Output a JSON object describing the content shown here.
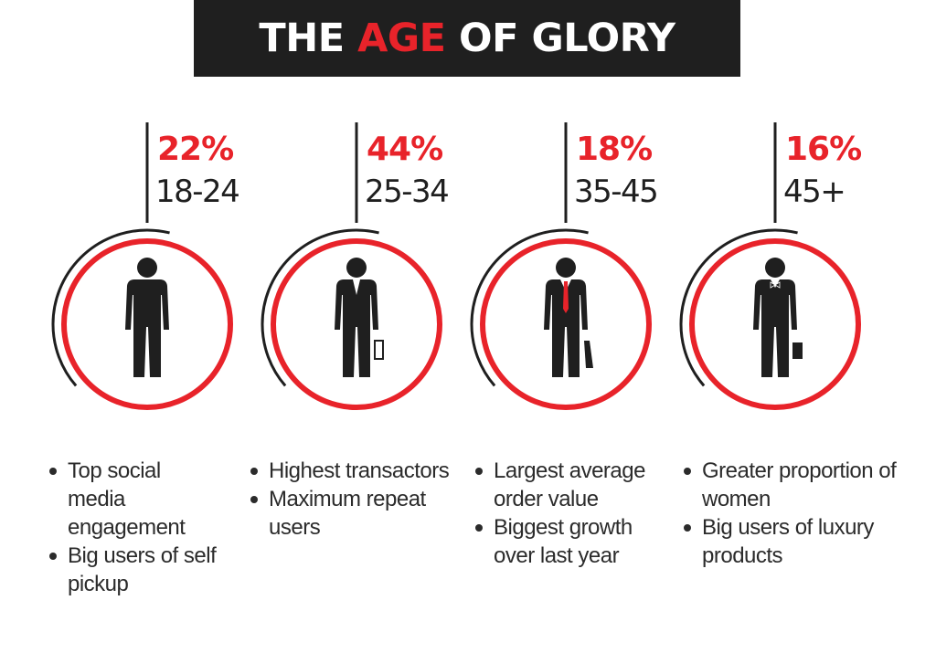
{
  "title": {
    "part1": "THE",
    "part2": "AGE",
    "part3": "OF GLORY"
  },
  "colors": {
    "accent": "#e8232a",
    "dark": "#1f1f1f",
    "text": "#2b2b2b"
  },
  "segments": [
    {
      "percent": "22%",
      "age_range": "18-24",
      "figure": "casual-person-icon",
      "bullets": [
        "Top social media engagement",
        "Big users of self pickup"
      ]
    },
    {
      "percent": "44%",
      "age_range": "25-34",
      "figure": "businessman-briefcase-icon",
      "bullets": [
        "Highest transactors",
        "Maximum repeat users"
      ]
    },
    {
      "percent": "18%",
      "age_range": "35-45",
      "figure": "businessman-red-tie-icon",
      "bullets": [
        "Largest average order value",
        "Biggest growth over last year"
      ]
    },
    {
      "percent": "16%",
      "age_range": "45+",
      "figure": "businessman-bowtie-icon",
      "bullets": [
        "Greater proportion of women",
        "Big users of luxury products"
      ]
    }
  ]
}
